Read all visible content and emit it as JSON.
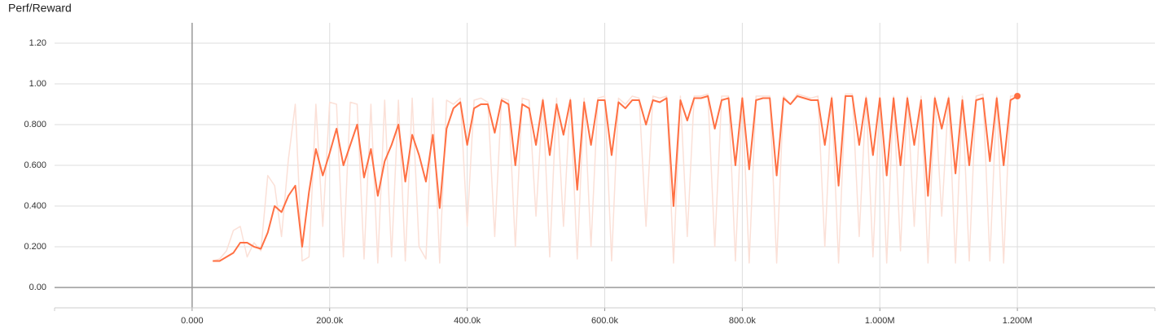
{
  "chart_data": {
    "type": "line",
    "title": "Perf/Reward",
    "xlim": [
      -200000,
      1400000
    ],
    "ylim": [
      -0.1,
      1.3
    ],
    "xticks": [
      {
        "value": 0,
        "label": "0.000"
      },
      {
        "value": 200000,
        "label": "200.0k"
      },
      {
        "value": 400000,
        "label": "400.0k"
      },
      {
        "value": 600000,
        "label": "600.0k"
      },
      {
        "value": 800000,
        "label": "800.0k"
      },
      {
        "value": 1000000,
        "label": "1.000M"
      },
      {
        "value": 1200000,
        "label": "1.200M"
      }
    ],
    "yticks": [
      {
        "value": 0,
        "label": "0.00"
      },
      {
        "value": 0.2,
        "label": "0.200"
      },
      {
        "value": 0.4,
        "label": "0.400"
      },
      {
        "value": 0.6,
        "label": "0.600"
      },
      {
        "value": 0.8,
        "label": "0.800"
      },
      {
        "value": 1,
        "label": "1.00"
      },
      {
        "value": 1.2,
        "label": "1.20"
      }
    ],
    "grid": true,
    "x": [
      30000,
      40000,
      50000,
      60000,
      70000,
      80000,
      90000,
      100000,
      110000,
      120000,
      130000,
      140000,
      150000,
      160000,
      170000,
      180000,
      190000,
      200000,
      210000,
      220000,
      230000,
      240000,
      250000,
      260000,
      270000,
      280000,
      290000,
      300000,
      310000,
      320000,
      330000,
      340000,
      350000,
      360000,
      370000,
      380000,
      390000,
      400000,
      410000,
      420000,
      430000,
      440000,
      450000,
      460000,
      470000,
      480000,
      490000,
      500000,
      510000,
      520000,
      530000,
      540000,
      550000,
      560000,
      570000,
      580000,
      590000,
      600000,
      610000,
      620000,
      630000,
      640000,
      650000,
      660000,
      670000,
      680000,
      690000,
      700000,
      710000,
      720000,
      730000,
      740000,
      750000,
      760000,
      770000,
      780000,
      790000,
      800000,
      810000,
      820000,
      830000,
      840000,
      850000,
      860000,
      870000,
      880000,
      890000,
      900000,
      910000,
      920000,
      930000,
      940000,
      950000,
      960000,
      970000,
      980000,
      990000,
      1000000,
      1010000,
      1020000,
      1030000,
      1040000,
      1050000,
      1060000,
      1070000,
      1080000,
      1090000,
      1100000,
      1110000,
      1120000,
      1130000,
      1140000,
      1150000,
      1160000,
      1170000,
      1180000,
      1190000,
      1200000
    ],
    "series": [
      {
        "color": "#fbe0d7",
        "values": [
          0.13,
          0.14,
          0.18,
          0.28,
          0.3,
          0.15,
          0.22,
          0.18,
          0.55,
          0.5,
          0.25,
          0.63,
          0.9,
          0.13,
          0.15,
          0.9,
          0.3,
          0.91,
          0.9,
          0.15,
          0.91,
          0.9,
          0.14,
          0.9,
          0.12,
          0.92,
          0.15,
          0.92,
          0.13,
          0.93,
          0.2,
          0.14,
          0.93,
          0.12,
          0.92,
          0.9,
          0.93,
          0.3,
          0.92,
          0.93,
          0.91,
          0.25,
          0.93,
          0.92,
          0.2,
          0.93,
          0.92,
          0.35,
          0.93,
          0.15,
          0.93,
          0.3,
          0.93,
          0.14,
          0.93,
          0.2,
          0.93,
          0.94,
          0.13,
          0.93,
          0.9,
          0.94,
          0.93,
          0.3,
          0.94,
          0.93,
          0.94,
          0.12,
          0.94,
          0.25,
          0.94,
          0.94,
          0.95,
          0.2,
          0.94,
          0.94,
          0.13,
          0.94,
          0.12,
          0.94,
          0.94,
          0.94,
          0.12,
          0.94,
          0.9,
          0.95,
          0.94,
          0.93,
          0.94,
          0.2,
          0.94,
          0.12,
          0.95,
          0.95,
          0.25,
          0.94,
          0.15,
          0.94,
          0.12,
          0.94,
          0.18,
          0.94,
          0.3,
          0.94,
          0.12,
          0.94,
          0.35,
          0.94,
          0.12,
          0.94,
          0.13,
          0.94,
          0.95,
          0.13,
          0.94,
          0.12,
          0.94,
          0.94
        ]
      },
      {
        "color": "#ff7043",
        "values": [
          0.13,
          0.13,
          0.15,
          0.17,
          0.22,
          0.22,
          0.2,
          0.19,
          0.27,
          0.4,
          0.37,
          0.45,
          0.5,
          0.2,
          0.47,
          0.68,
          0.55,
          0.66,
          0.78,
          0.6,
          0.7,
          0.8,
          0.54,
          0.68,
          0.45,
          0.62,
          0.7,
          0.8,
          0.52,
          0.75,
          0.65,
          0.52,
          0.75,
          0.39,
          0.78,
          0.88,
          0.91,
          0.7,
          0.88,
          0.9,
          0.9,
          0.76,
          0.92,
          0.9,
          0.6,
          0.9,
          0.88,
          0.7,
          0.92,
          0.65,
          0.9,
          0.75,
          0.92,
          0.48,
          0.91,
          0.7,
          0.92,
          0.92,
          0.65,
          0.91,
          0.88,
          0.92,
          0.92,
          0.8,
          0.92,
          0.91,
          0.93,
          0.4,
          0.92,
          0.82,
          0.93,
          0.93,
          0.94,
          0.78,
          0.92,
          0.93,
          0.6,
          0.93,
          0.58,
          0.92,
          0.93,
          0.93,
          0.55,
          0.93,
          0.9,
          0.94,
          0.93,
          0.92,
          0.92,
          0.7,
          0.93,
          0.5,
          0.94,
          0.94,
          0.7,
          0.93,
          0.65,
          0.93,
          0.55,
          0.93,
          0.6,
          0.93,
          0.7,
          0.92,
          0.45,
          0.93,
          0.78,
          0.93,
          0.56,
          0.92,
          0.6,
          0.92,
          0.93,
          0.62,
          0.93,
          0.6,
          0.92,
          0.94
        ]
      }
    ]
  }
}
